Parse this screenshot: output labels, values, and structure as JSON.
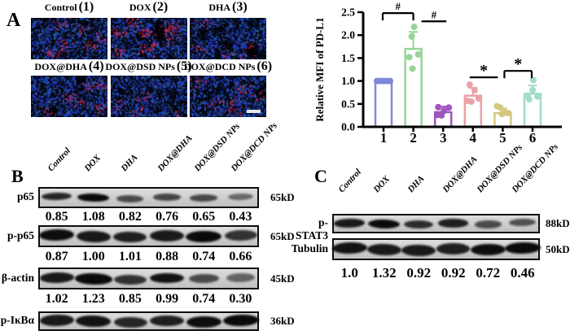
{
  "panel_a": {
    "label": "A",
    "images": [
      {
        "name": "Control",
        "num": "(1)",
        "red_density": 0.5
      },
      {
        "name": "DOX",
        "num": "(2)",
        "red_density": 1.0
      },
      {
        "name": "DHA",
        "num": "(3)",
        "red_density": 0.22
      },
      {
        "name": "DOX@DHA",
        "num": "(4)",
        "red_density": 0.45
      },
      {
        "name": "DOX@DSD NPs",
        "num": "(5)",
        "red_density": 0.18
      },
      {
        "name": "DOX@DCD NPs",
        "num": "(6)",
        "red_density": 0.4
      }
    ]
  },
  "chart_data": {
    "type": "bar",
    "title": "",
    "xlabel": "",
    "ylabel": "Relative MFI of PD-L1",
    "categories": [
      "1",
      "2",
      "3",
      "4",
      "5",
      "6"
    ],
    "values": [
      1.0,
      1.7,
      0.32,
      0.68,
      0.3,
      0.72
    ],
    "errors": [
      0.02,
      0.37,
      0.12,
      0.17,
      0.1,
      0.18
    ],
    "points": [
      [
        [
          1.0,
          -8
        ],
        [
          1.0,
          -4
        ],
        [
          1.0,
          0
        ],
        [
          1.0,
          4
        ],
        [
          1.0,
          8
        ]
      ],
      [
        [
          2.18,
          1
        ],
        [
          1.97,
          -2
        ],
        [
          1.58,
          6
        ],
        [
          1.52,
          -5
        ],
        [
          1.27,
          -1
        ]
      ],
      [
        [
          0.43,
          -6
        ],
        [
          0.42,
          7
        ],
        [
          0.35,
          1
        ],
        [
          0.26,
          -7
        ],
        [
          0.25,
          -2
        ]
      ],
      [
        [
          0.92,
          -4
        ],
        [
          0.8,
          2
        ],
        [
          0.62,
          7
        ],
        [
          0.57,
          -7
        ],
        [
          0.55,
          -2
        ]
      ],
      [
        [
          0.45,
          -7
        ],
        [
          0.42,
          -3
        ],
        [
          0.31,
          3
        ],
        [
          0.3,
          7
        ],
        [
          0.28,
          -1
        ]
      ],
      [
        [
          1.02,
          1
        ],
        [
          0.8,
          0
        ],
        [
          0.68,
          -6
        ],
        [
          0.66,
          6
        ],
        [
          0.6,
          -4
        ]
      ]
    ],
    "bar_colors": [
      "#8187d8",
      "#97d49a",
      "#9f56bd",
      "#eaa1a6",
      "#d4c87e",
      "#a3dcc8"
    ],
    "ylim": [
      0,
      2.5
    ],
    "yticks": [
      "0.0",
      "0.5",
      "1.0",
      "1.5",
      "2.0",
      "2.5"
    ],
    "grid": false,
    "legend": "none",
    "significance": [
      {
        "from": 0,
        "to": 1,
        "y": 2.48,
        "label": "#",
        "style": "bracket",
        "dx1": -1,
        "dx2": 0
      },
      {
        "from": 1,
        "to": 2,
        "y": 2.3,
        "label": "#",
        "style": "line",
        "dx1": 10,
        "dx2": 4
      },
      {
        "from": 3,
        "to": 4,
        "y": 1.08,
        "label": "*",
        "style": "line",
        "dx1": -4,
        "dx2": -6
      },
      {
        "from": 4,
        "to": 5,
        "y": 1.22,
        "label": "*",
        "style": "bracket",
        "dx1": 2,
        "dx2": -1
      }
    ]
  },
  "panel_b": {
    "label": "B",
    "lanes": [
      "Control",
      "DOX",
      "DHA",
      "DOX@DHA",
      "DOX@DSD NPs",
      "DOX@DCD NPs"
    ],
    "rows": [
      {
        "protein": "p65",
        "kd": "65kD",
        "values": [
          "0.85",
          "1.08",
          "0.82",
          "0.76",
          "0.65",
          "0.43"
        ],
        "band_intensities": [
          0.9,
          1.15,
          0.6,
          0.65,
          0.62,
          0.35
        ],
        "band_h": 9
      },
      {
        "protein": "p-p65",
        "kd": "65kD",
        "values": [
          "0.87",
          "1.00",
          "1.01",
          "0.88",
          "0.74",
          "0.66"
        ],
        "band_intensities": [
          1.1,
          1.0,
          0.95,
          1.0,
          1.15,
          0.8
        ],
        "band_h": 13
      },
      {
        "protein": "β-actin",
        "kd": "45kD",
        "values": [
          "1.02",
          "1.23",
          "0.85",
          "0.99",
          "0.74",
          "0.30"
        ],
        "band_intensities": [
          1.0,
          1.3,
          0.8,
          1.05,
          0.6,
          0.4
        ],
        "band_h": 12
      },
      {
        "protein": "p-IκBα",
        "kd": "36kD",
        "values": null,
        "band_intensities": [
          1.0,
          1.05,
          0.9,
          0.95,
          1.1,
          1.15
        ],
        "band_h": 13
      }
    ]
  },
  "panel_c": {
    "label": "C",
    "lanes": [
      "Control",
      "DOX",
      "DHA",
      "DOX@DHA",
      "DOX@DSD NPs",
      "DOX@DCD NPs"
    ],
    "rows": [
      {
        "protein": "p-STAT3",
        "kd": "88kD",
        "values": null,
        "band_intensities": [
          1.0,
          1.15,
          0.85,
          0.95,
          0.6,
          0.55
        ],
        "band_h": 10
      },
      {
        "protein": "Tubulin",
        "kd": "50kD",
        "values": null,
        "band_intensities": [
          1.05,
          1.0,
          1.0,
          0.95,
          1.1,
          1.2
        ],
        "band_h": 13
      }
    ],
    "values": [
      "1.0",
      "1.32",
      "0.92",
      "0.92",
      "0.72",
      "0.46"
    ]
  }
}
